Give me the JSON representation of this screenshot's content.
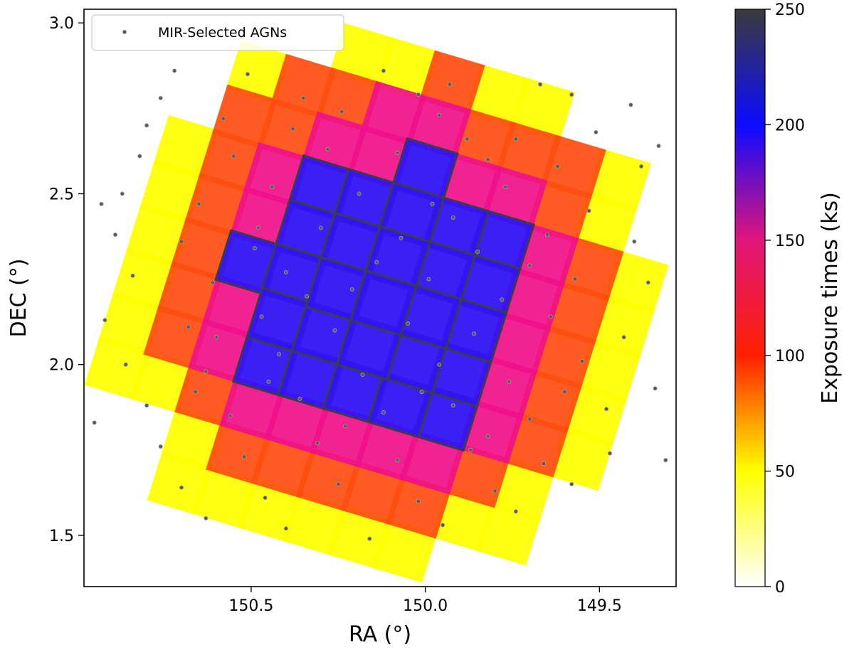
{
  "chart_data": {
    "type": "heatmap",
    "title": "",
    "xlabel": "RA (°)",
    "ylabel": "DEC (°)",
    "xlim": [
      150.98,
      149.28
    ],
    "ylim": [
      1.35,
      3.04
    ],
    "x_ticks": [
      150.5,
      150.0,
      149.5
    ],
    "x_tick_labels": [
      "150.5",
      "150.0",
      "149.5"
    ],
    "y_ticks": [
      1.5,
      2.0,
      2.5,
      3.0
    ],
    "y_tick_labels": [
      "1.5",
      "2.0",
      "2.5",
      "3.0"
    ],
    "legend": {
      "placement": "top-left",
      "entries": [
        "MIR-Selected AGNs"
      ]
    },
    "colorbar": {
      "label": "Exposure times (ks)",
      "range": [
        0,
        250
      ],
      "ticks": [
        0,
        50,
        100,
        150,
        200,
        250
      ],
      "tick_labels": [
        "0",
        "50",
        "100",
        "150",
        "200",
        "250"
      ],
      "colormap_stops": [
        {
          "value": 0,
          "color": "#ffffff"
        },
        {
          "value": 50,
          "color": "#ffff00"
        },
        {
          "value": 100,
          "color": "#ff2000"
        },
        {
          "value": 150,
          "color": "#e0157a"
        },
        {
          "value": 200,
          "color": "#0b0bff"
        },
        {
          "value": 250,
          "color": "#3a3a3a"
        }
      ]
    },
    "mosaic": {
      "rotation_deg": -17,
      "tile_size_deg": 0.135,
      "exposure_levels": [
        {
          "zone": "outer_ring",
          "exposure_ks": 55,
          "color": "#ffff00"
        },
        {
          "zone": "mid_ring",
          "exposure_ks": 100,
          "color": "#ff4d10"
        },
        {
          "zone": "inner_ring",
          "exposure_ks": 140,
          "color": "#f0108a"
        },
        {
          "zone": "core",
          "exposure_ks": 190,
          "color": "#3014f5"
        },
        {
          "zone": "core_overlaps",
          "exposure_ks": 245,
          "color": "#3c3c4a"
        }
      ]
    },
    "series": [
      {
        "name": "MIR-Selected AGNs",
        "type": "scatter",
        "marker_color": "#595959",
        "points": [
          [
            150.72,
            2.86
          ],
          [
            150.51,
            2.85
          ],
          [
            150.35,
            2.78
          ],
          [
            150.12,
            2.86
          ],
          [
            149.93,
            2.82
          ],
          [
            149.67,
            2.82
          ],
          [
            149.58,
            2.79
          ],
          [
            149.41,
            2.76
          ],
          [
            150.76,
            2.78
          ],
          [
            150.38,
            2.69
          ],
          [
            150.24,
            2.74
          ],
          [
            149.96,
            2.73
          ],
          [
            149.74,
            2.66
          ],
          [
            149.51,
            2.68
          ],
          [
            150.82,
            2.61
          ],
          [
            150.55,
            2.61
          ],
          [
            150.28,
            2.63
          ],
          [
            150.08,
            2.62
          ],
          [
            149.82,
            2.6
          ],
          [
            149.62,
            2.58
          ],
          [
            149.38,
            2.58
          ],
          [
            150.87,
            2.5
          ],
          [
            150.65,
            2.47
          ],
          [
            150.44,
            2.52
          ],
          [
            150.19,
            2.5
          ],
          [
            149.98,
            2.47
          ],
          [
            149.77,
            2.52
          ],
          [
            149.53,
            2.45
          ],
          [
            150.89,
            2.38
          ],
          [
            150.7,
            2.36
          ],
          [
            150.49,
            2.34
          ],
          [
            150.3,
            2.4
          ],
          [
            150.07,
            2.37
          ],
          [
            149.85,
            2.33
          ],
          [
            149.65,
            2.38
          ],
          [
            149.4,
            2.36
          ],
          [
            150.84,
            2.26
          ],
          [
            150.61,
            2.24
          ],
          [
            150.4,
            2.27
          ],
          [
            150.21,
            2.22
          ],
          [
            149.99,
            2.25
          ],
          [
            149.78,
            2.19
          ],
          [
            149.57,
            2.25
          ],
          [
            149.36,
            2.24
          ],
          [
            150.92,
            2.13
          ],
          [
            150.68,
            2.11
          ],
          [
            150.47,
            2.14
          ],
          [
            150.26,
            2.1
          ],
          [
            150.05,
            2.12
          ],
          [
            149.86,
            2.09
          ],
          [
            149.64,
            2.14
          ],
          [
            149.43,
            2.08
          ],
          [
            150.86,
            2.0
          ],
          [
            150.63,
            1.98
          ],
          [
            150.42,
            2.03
          ],
          [
            150.18,
            1.97
          ],
          [
            149.96,
            2.0
          ],
          [
            149.76,
            1.95
          ],
          [
            149.55,
            2.01
          ],
          [
            149.34,
            1.93
          ],
          [
            150.8,
            1.88
          ],
          [
            150.56,
            1.85
          ],
          [
            150.36,
            1.9
          ],
          [
            150.12,
            1.86
          ],
          [
            149.92,
            1.88
          ],
          [
            149.7,
            1.84
          ],
          [
            149.48,
            1.87
          ],
          [
            150.76,
            1.76
          ],
          [
            150.52,
            1.73
          ],
          [
            150.31,
            1.77
          ],
          [
            150.08,
            1.72
          ],
          [
            149.87,
            1.75
          ],
          [
            149.66,
            1.71
          ],
          [
            149.47,
            1.74
          ],
          [
            150.7,
            1.64
          ],
          [
            150.46,
            1.61
          ],
          [
            150.25,
            1.65
          ],
          [
            150.02,
            1.6
          ],
          [
            149.8,
            1.63
          ],
          [
            149.58,
            1.65
          ],
          [
            150.63,
            1.55
          ],
          [
            150.4,
            1.52
          ],
          [
            150.16,
            1.49
          ],
          [
            149.95,
            1.53
          ],
          [
            149.74,
            1.57
          ],
          [
            149.31,
            1.72
          ],
          [
            150.95,
            1.83
          ],
          [
            150.93,
            2.47
          ],
          [
            149.33,
            2.64
          ],
          [
            150.8,
            2.7
          ],
          [
            150.58,
            2.72
          ],
          [
            150.02,
            2.79
          ],
          [
            149.88,
            2.66
          ],
          [
            150.6,
            2.08
          ],
          [
            150.34,
            2.2
          ],
          [
            150.14,
            2.3
          ],
          [
            149.92,
            2.43
          ],
          [
            149.7,
            2.29
          ],
          [
            150.45,
            1.95
          ],
          [
            150.23,
            1.82
          ],
          [
            150.01,
            1.92
          ],
          [
            149.82,
            1.79
          ],
          [
            149.6,
            1.92
          ],
          [
            150.66,
            1.92
          ],
          [
            150.48,
            2.4
          ]
        ]
      }
    ]
  }
}
